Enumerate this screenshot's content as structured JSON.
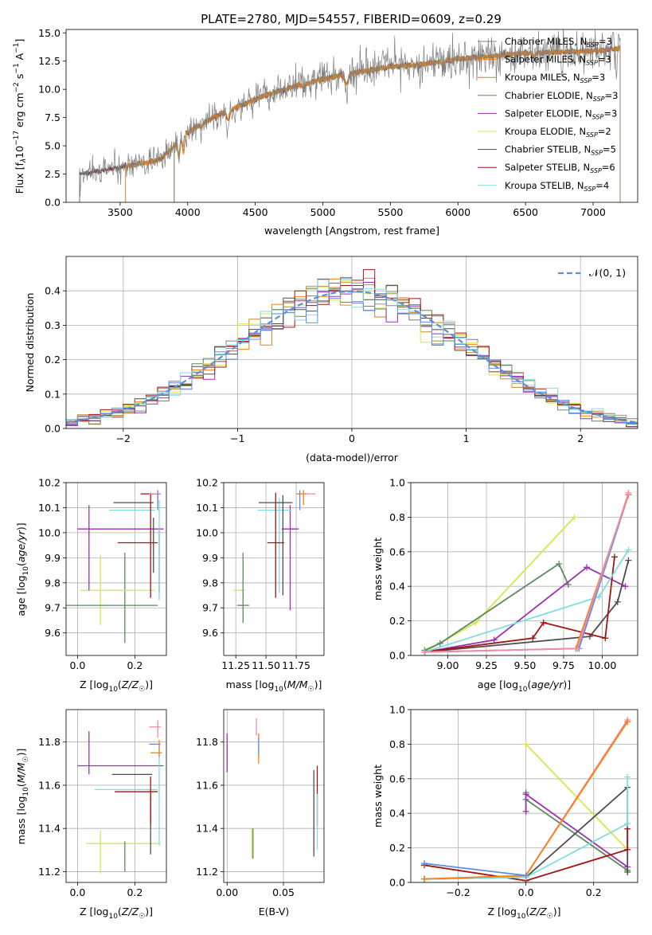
{
  "figure_title": "PLATE=2780, MJD=54557, FIBERID=0609, z=0.29",
  "colors": {
    "chabrier_miles": "#7f7f7f",
    "salpeter_miles": "#ff7f0e",
    "kroupa_miles": "#c8862a",
    "chabrier_elodie": "#5e8a5e",
    "salpeter_elodie": "#9b30b0",
    "kroupa_elodie": "#d4e64a",
    "chabrier_stelib": "#4d4d4d",
    "salpeter_stelib": "#a31515",
    "kroupa_stelib": "#7fdde0",
    "extra_blue": "#5b8ee6",
    "extra_pink": "#f08ab0",
    "normal_curve": "#5b8fd6",
    "grid": "#b0b0b0"
  },
  "chart_data": [
    {
      "id": "spectrum",
      "type": "line",
      "title": "PLATE=2780, MJD=54557, FIBERID=0609, z=0.29",
      "xlabel": "wavelength [Angstrom, rest frame]",
      "ylabel": "Flux [f_λ 10^-17 erg cm^-2 s^-1 A^-1]",
      "xlim": [
        3100,
        7330
      ],
      "ylim": [
        0,
        15.3
      ],
      "xticks": [
        3500,
        4000,
        4500,
        5000,
        5500,
        6000,
        6500,
        7000
      ],
      "yticks": [
        0.0,
        2.5,
        5.0,
        7.5,
        10.0,
        12.5,
        15.0
      ],
      "grid": false,
      "legend_position": "top-right",
      "data_range": [
        3200,
        7200
      ],
      "continuum_anchors": [
        [
          3200,
          2.5
        ],
        [
          3400,
          2.9
        ],
        [
          3600,
          3.3
        ],
        [
          3800,
          3.8
        ],
        [
          4000,
          6.2
        ],
        [
          4200,
          7.6
        ],
        [
          4400,
          8.6
        ],
        [
          4600,
          9.6
        ],
        [
          4800,
          10.3
        ],
        [
          5000,
          10.9
        ],
        [
          5200,
          11.4
        ],
        [
          5500,
          12.0
        ],
        [
          5800,
          12.3
        ],
        [
          6000,
          12.7
        ],
        [
          6500,
          13.2
        ],
        [
          7000,
          13.4
        ],
        [
          7200,
          13.6
        ]
      ],
      "series": [
        {
          "name": "Chabrier MILES, N_SSP=3",
          "label_main": "Chabrier MILES, N",
          "label_sub": "SSP",
          "label_tail": "=3",
          "color": "#7f7f7f",
          "start": 3200
        },
        {
          "name": "Salpeter MILES, N_SSP=3",
          "label_main": "Salpeter MILES, N",
          "label_sub": "SSP",
          "label_tail": "=3",
          "color": "#ff7f0e",
          "start": 3540
        },
        {
          "name": "Kroupa MILES, N_SSP=3",
          "label_main": "Kroupa MILES, N",
          "label_sub": "SSP",
          "label_tail": "=3",
          "color": "#c8862a",
          "start": 3540
        },
        {
          "name": "Chabrier ELODIE, N_SSP=3",
          "label_main": "Chabrier ELODIE, N",
          "label_sub": "SSP",
          "label_tail": "=3",
          "color": "#5e8a5e",
          "start": 3900
        },
        {
          "name": "Salpeter ELODIE, N_SSP=3",
          "label_main": "Salpeter ELODIE, N",
          "label_sub": "SSP",
          "label_tail": "=3",
          "color": "#9b30b0",
          "start": 3900
        },
        {
          "name": "Kroupa ELODIE, N_SSP=2",
          "label_main": "Kroupa ELODIE, N",
          "label_sub": "SSP",
          "label_tail": "=2",
          "color": "#d4e64a",
          "start": 3900
        },
        {
          "name": "Chabrier STELIB, N_SSP=5",
          "label_main": "Chabrier STELIB, N",
          "label_sub": "SSP",
          "label_tail": "=5",
          "color": "#4d4d4d",
          "start": 3200
        },
        {
          "name": "Salpeter STELIB, N_SSP=6",
          "label_main": "Salpeter STELIB, N",
          "label_sub": "SSP",
          "label_tail": "=6",
          "color": "#a31515",
          "start": 3200
        },
        {
          "name": "Kroupa STELIB, N_SSP=4",
          "label_main": "Kroupa STELIB, N",
          "label_sub": "SSP",
          "label_tail": "=4",
          "color": "#7fdde0",
          "start": 3200
        }
      ]
    },
    {
      "id": "residuals",
      "type": "line",
      "xlabel": "(data-model)/error",
      "ylabel": "Normed distribution",
      "xlim": [
        -2.5,
        2.5
      ],
      "ylim": [
        0,
        0.5
      ],
      "xticks": [
        -2,
        -1,
        0,
        1,
        2
      ],
      "yticks": [
        0.0,
        0.1,
        0.2,
        0.3,
        0.4
      ],
      "grid": true,
      "legend_position": "top-right",
      "legend": "N(0,1)",
      "bin_width": 0.1,
      "curve": "normal distribution, mean 0, sigma 1"
    },
    {
      "id": "age_vs_Z",
      "type": "scatter",
      "xlabel": "Z [log10(Z/Z☉)]",
      "ylabel": "age  [log10(age/yr)]",
      "xlim": [
        -0.04,
        0.31
      ],
      "ylim": [
        9.51,
        10.2
      ],
      "xticks": [
        0.0,
        0.2
      ],
      "yticks": [
        9.6,
        9.7,
        9.8,
        9.9,
        10.0,
        10.1,
        10.2
      ],
      "grid": true,
      "points": [
        {
          "x": 0.08,
          "xerr": 0.07,
          "y": 9.77,
          "yerr": 0.14,
          "color": "#d4e64a"
        },
        {
          "x": 0.08,
          "xerr": 0.2,
          "y": 9.71,
          "yerr": 0.0,
          "color": "#5e8a5e"
        },
        {
          "x": 0.165,
          "xerr": 0.0,
          "y": 9.74,
          "yerr": 0.18,
          "color": "#5e8a5e"
        },
        {
          "x": 0.04,
          "xerr": 0.0,
          "y": 9.94,
          "yerr": 0.17,
          "color": "#9b30b0"
        },
        {
          "x": 0.15,
          "xerr": 0.15,
          "y": 10.015,
          "yerr": 0.0,
          "color": "#9b30b0"
        },
        {
          "x": 0.285,
          "xerr": 0.0,
          "y": 9.89,
          "yerr": 0.13,
          "color": "#9b30b0"
        },
        {
          "x": 0.19,
          "xerr": 0.08,
          "y": 9.77,
          "yerr": 0.0,
          "color": "#d4e64a"
        },
        {
          "x": 0.19,
          "xerr": 0.08,
          "y": 10.09,
          "yerr": 0.0,
          "color": "#7fdde0"
        },
        {
          "x": 0.285,
          "xerr": 0.0,
          "y": 9.93,
          "yerr": 0.2,
          "color": "#7fdde0"
        },
        {
          "x": 0.195,
          "xerr": 0.07,
          "y": 10.12,
          "yerr": 0.0,
          "color": "#4d4d4d"
        },
        {
          "x": 0.265,
          "xerr": 0.0,
          "y": 9.95,
          "yerr": 0.11,
          "color": "#4d4d4d"
        },
        {
          "x": 0.21,
          "xerr": 0.07,
          "y": 9.96,
          "yerr": 0.0,
          "color": "#a31515"
        },
        {
          "x": 0.255,
          "xerr": 0.0,
          "y": 9.95,
          "yerr": 0.21,
          "color": "#a31515"
        },
        {
          "x": 0.255,
          "xerr": 0.035,
          "y": 10.155,
          "yerr": 0.0,
          "color": "#a31515"
        },
        {
          "x": 0.28,
          "xerr": 0.0,
          "y": 10.14,
          "yerr": 0.03,
          "color": "#ff7f0e"
        },
        {
          "x": 0.27,
          "xerr": 0.02,
          "y": 10.155,
          "yerr": 0.0,
          "color": "#f08ab0"
        },
        {
          "x": 0.28,
          "xerr": 0.0,
          "y": 10.13,
          "yerr": 0.04,
          "color": "#5b8ee6"
        }
      ]
    },
    {
      "id": "age_vs_mass",
      "type": "scatter",
      "xlabel": "mass [log10(M/M☉)]",
      "ylabel": "",
      "xlim": [
        11.15,
        11.98
      ],
      "ylim": [
        9.51,
        10.2
      ],
      "xticks": [
        11.25,
        11.5,
        11.75
      ],
      "yticks": [
        9.6,
        9.7,
        9.8,
        9.9,
        10.0,
        10.1,
        10.2
      ],
      "grid": true,
      "points": [
        {
          "x": 11.28,
          "xerr": 0.05,
          "y": 9.77,
          "yerr": 0.0,
          "color": "#d4e64a"
        },
        {
          "x": 11.31,
          "xerr": 0.0,
          "y": 9.78,
          "yerr": 0.14,
          "color": "#5e8a5e"
        },
        {
          "x": 11.31,
          "xerr": 0.05,
          "y": 9.71,
          "yerr": 0.0,
          "color": "#5e8a5e"
        },
        {
          "x": 11.7,
          "xerr": 0.0,
          "y": 9.9,
          "yerr": 0.21,
          "color": "#9b30b0"
        },
        {
          "x": 11.7,
          "xerr": 0.07,
          "y": 10.015,
          "yerr": 0.0,
          "color": "#9b30b0"
        },
        {
          "x": 11.57,
          "xerr": 0.14,
          "y": 10.09,
          "yerr": 0.0,
          "color": "#7fdde0"
        },
        {
          "x": 11.61,
          "xerr": 0.0,
          "y": 9.95,
          "yerr": 0.19,
          "color": "#7fdde0"
        },
        {
          "x": 11.58,
          "xerr": 0.14,
          "y": 10.12,
          "yerr": 0.0,
          "color": "#4d4d4d"
        },
        {
          "x": 11.64,
          "xerr": 0.0,
          "y": 9.95,
          "yerr": 0.2,
          "color": "#4d4d4d"
        },
        {
          "x": 11.58,
          "xerr": 0.07,
          "y": 9.96,
          "yerr": 0.0,
          "color": "#a31515"
        },
        {
          "x": 11.58,
          "xerr": 0.0,
          "y": 9.95,
          "yerr": 0.21,
          "color": "#a31515"
        },
        {
          "x": 11.8,
          "xerr": 0.05,
          "y": 10.155,
          "yerr": 0.0,
          "color": "#ff7f0e"
        },
        {
          "x": 11.81,
          "xerr": 0.0,
          "y": 10.14,
          "yerr": 0.03,
          "color": "#ff7f0e"
        },
        {
          "x": 11.87,
          "xerr": 0.04,
          "y": 10.155,
          "yerr": 0.0,
          "color": "#f08ab0"
        },
        {
          "x": 11.78,
          "xerr": 0.0,
          "y": 10.13,
          "yerr": 0.04,
          "color": "#5b8ee6"
        }
      ]
    },
    {
      "id": "weight_vs_age",
      "type": "line",
      "xlabel": "age  [log10(age/yr)]",
      "ylabel": "mass weight",
      "xlim": [
        8.76,
        10.23
      ],
      "ylim": [
        0,
        1.0
      ],
      "xticks": [
        9.0,
        9.25,
        9.5,
        9.75,
        10.0
      ],
      "yticks": [
        0.0,
        0.2,
        0.4,
        0.6,
        0.8,
        1.0
      ],
      "grid": true,
      "series": [
        {
          "color": "#d4e64a",
          "x": [
            8.85,
            9.18,
            9.82
          ],
          "y": [
            0.02,
            0.19,
            0.8
          ]
        },
        {
          "color": "#5e8a5e",
          "x": [
            8.85,
            8.95,
            9.72,
            9.78
          ],
          "y": [
            0.03,
            0.07,
            0.53,
            0.41
          ]
        },
        {
          "color": "#9b30b0",
          "x": [
            8.85,
            9.3,
            9.9,
            10.15
          ],
          "y": [
            0.02,
            0.09,
            0.51,
            0.4
          ]
        },
        {
          "color": "#4d4d4d",
          "x": [
            8.85,
            9.92,
            10.1,
            10.17
          ],
          "y": [
            0.02,
            0.11,
            0.31,
            0.55
          ]
        },
        {
          "color": "#a31515",
          "x": [
            8.85,
            9.55,
            9.62,
            10.02,
            10.08
          ],
          "y": [
            0.02,
            0.1,
            0.19,
            0.1,
            0.57
          ]
        },
        {
          "color": "#7fdde0",
          "x": [
            8.85,
            9.98,
            10.17
          ],
          "y": [
            0.02,
            0.34,
            0.61
          ]
        },
        {
          "color": "#5b8ee6",
          "x": [
            8.85,
            9.85,
            10.17
          ],
          "y": [
            0.02,
            0.04,
            0.93
          ]
        },
        {
          "color": "#ff7f0e",
          "x": [
            8.85,
            9.83,
            10.17
          ],
          "y": [
            0.02,
            0.04,
            0.93
          ]
        },
        {
          "color": "#f08ab0",
          "x": [
            8.85,
            9.84,
            10.17
          ],
          "y": [
            0.02,
            0.04,
            0.94
          ]
        }
      ]
    },
    {
      "id": "mass_vs_Z",
      "type": "scatter",
      "xlabel": "Z [log10(Z/Z☉)]",
      "ylabel": "mass [log10(M/M☉)]",
      "xlim": [
        -0.04,
        0.31
      ],
      "ylim": [
        11.15,
        11.95
      ],
      "xticks": [
        0.0,
        0.2
      ],
      "yticks": [
        11.2,
        11.4,
        11.6,
        11.8
      ],
      "grid": true,
      "points": [
        {
          "x": 0.08,
          "xerr": 0.0,
          "y": 11.29,
          "yerr": 0.1,
          "color": "#d4e64a"
        },
        {
          "x": 0.16,
          "xerr": 0.13,
          "y": 11.33,
          "yerr": 0.0,
          "color": "#d4e64a"
        },
        {
          "x": 0.165,
          "xerr": 0.0,
          "y": 11.27,
          "yerr": 0.07,
          "color": "#5e8a5e"
        },
        {
          "x": 0.04,
          "xerr": 0.0,
          "y": 11.75,
          "yerr": 0.1,
          "color": "#9b30b0"
        },
        {
          "x": 0.15,
          "xerr": 0.15,
          "y": 11.69,
          "yerr": 0.0,
          "color": "#9b30b0"
        },
        {
          "x": 0.17,
          "xerr": 0.11,
          "y": 11.58,
          "yerr": 0.0,
          "color": "#7fdde0"
        },
        {
          "x": 0.285,
          "xerr": 0.0,
          "y": 11.55,
          "yerr": 0.23,
          "color": "#7fdde0"
        },
        {
          "x": 0.19,
          "xerr": 0.07,
          "y": 11.65,
          "yerr": 0.0,
          "color": "#4d4d4d"
        },
        {
          "x": 0.255,
          "xerr": 0.0,
          "y": 11.42,
          "yerr": 0.14,
          "color": "#4d4d4d"
        },
        {
          "x": 0.205,
          "xerr": 0.075,
          "y": 11.57,
          "yerr": 0.0,
          "color": "#a31515"
        },
        {
          "x": 0.255,
          "xerr": 0.0,
          "y": 11.53,
          "yerr": 0.11,
          "color": "#a31515"
        },
        {
          "x": 0.27,
          "xerr": 0.02,
          "y": 11.87,
          "yerr": 0.0,
          "color": "#f08ab0"
        },
        {
          "x": 0.28,
          "xerr": 0.0,
          "y": 11.86,
          "yerr": 0.04,
          "color": "#f08ab0"
        },
        {
          "x": 0.27,
          "xerr": 0.02,
          "y": 11.79,
          "yerr": 0.0,
          "color": "#5b8ee6"
        },
        {
          "x": 0.275,
          "xerr": 0.02,
          "y": 11.75,
          "yerr": 0.0,
          "color": "#ff7f0e"
        },
        {
          "x": 0.285,
          "xerr": 0.0,
          "y": 11.77,
          "yerr": 0.04,
          "color": "#ff7f0e"
        }
      ]
    },
    {
      "id": "mass_vs_ebv",
      "type": "scatter",
      "xlabel": "E(B-V)",
      "ylabel": "",
      "xlim": [
        -0.003,
        0.086
      ],
      "ylim": [
        11.15,
        11.95
      ],
      "xticks": [
        0.0,
        0.05
      ],
      "yticks": [
        11.2,
        11.4,
        11.6,
        11.8
      ],
      "grid": true,
      "points": [
        {
          "x": 0.0,
          "xerr": 0.0,
          "y": 11.75,
          "yerr": 0.09,
          "color": "#9b30b0"
        },
        {
          "x": 0.022,
          "xerr": 0.0,
          "y": 11.33,
          "yerr": 0.07,
          "color": "#d4e64a"
        },
        {
          "x": 0.023,
          "xerr": 0.0,
          "y": 11.33,
          "yerr": 0.07,
          "color": "#5e8a5e"
        },
        {
          "x": 0.026,
          "xerr": 0.0,
          "y": 11.87,
          "yerr": 0.04,
          "color": "#f08ab0"
        },
        {
          "x": 0.028,
          "xerr": 0.0,
          "y": 11.77,
          "yerr": 0.07,
          "color": "#ff7f0e"
        },
        {
          "x": 0.028,
          "xerr": 0.0,
          "y": 11.78,
          "yerr": 0.04,
          "color": "#5b8ee6"
        },
        {
          "x": 0.077,
          "xerr": 0.0,
          "y": 11.47,
          "yerr": 0.2,
          "color": "#4d4d4d"
        },
        {
          "x": 0.08,
          "xerr": 0.0,
          "y": 11.55,
          "yerr": 0.14,
          "color": "#a31515"
        },
        {
          "x": 0.08,
          "xerr": 0.0,
          "y": 11.43,
          "yerr": 0.13,
          "color": "#7fdde0"
        }
      ]
    },
    {
      "id": "weight_vs_Z",
      "type": "line",
      "xlabel": "Z [log10(Z/Z☉)]",
      "ylabel": "mass weight",
      "xlim": [
        -0.34,
        0.33
      ],
      "ylim": [
        0,
        1.0
      ],
      "xticks": [
        -0.2,
        0.0,
        0.2
      ],
      "yticks": [
        0.0,
        0.2,
        0.4,
        0.6,
        0.8,
        1.0
      ],
      "grid": true,
      "series": [
        {
          "color": "#d4e64a",
          "x": [
            0.0,
            0.3
          ],
          "y": [
            0.8,
            0.19
          ]
        },
        {
          "color": "#5e8a5e",
          "x": [
            0.0,
            0.0,
            0.3
          ],
          "y": [
            0.52,
            0.48,
            0.07
          ]
        },
        {
          "color": "#9b30b0",
          "x": [
            0.0,
            0.0,
            0.3
          ],
          "y": [
            0.41,
            0.51,
            0.09
          ]
        },
        {
          "color": "#4d4d4d",
          "x": [
            -0.3,
            0.0,
            0.3,
            0.3
          ],
          "y": [
            0.02,
            0.03,
            0.55,
            0.06
          ]
        },
        {
          "color": "#a31515",
          "x": [
            -0.3,
            0.0,
            0.3,
            0.3
          ],
          "y": [
            0.1,
            0.01,
            0.19,
            0.31
          ]
        },
        {
          "color": "#7fdde0",
          "x": [
            -0.3,
            0.0,
            0.3,
            0.3
          ],
          "y": [
            0.02,
            0.03,
            0.34,
            0.61
          ]
        },
        {
          "color": "#f08ab0",
          "x": [
            0.0,
            0.3
          ],
          "y": [
            0.04,
            0.94
          ]
        },
        {
          "color": "#ff7f0e",
          "x": [
            -0.3,
            0.0,
            0.3
          ],
          "y": [
            0.02,
            0.04,
            0.93
          ]
        },
        {
          "color": "#5b8ee6",
          "x": [
            -0.3,
            0.0
          ],
          "y": [
            0.11,
            0.04
          ]
        }
      ]
    }
  ]
}
